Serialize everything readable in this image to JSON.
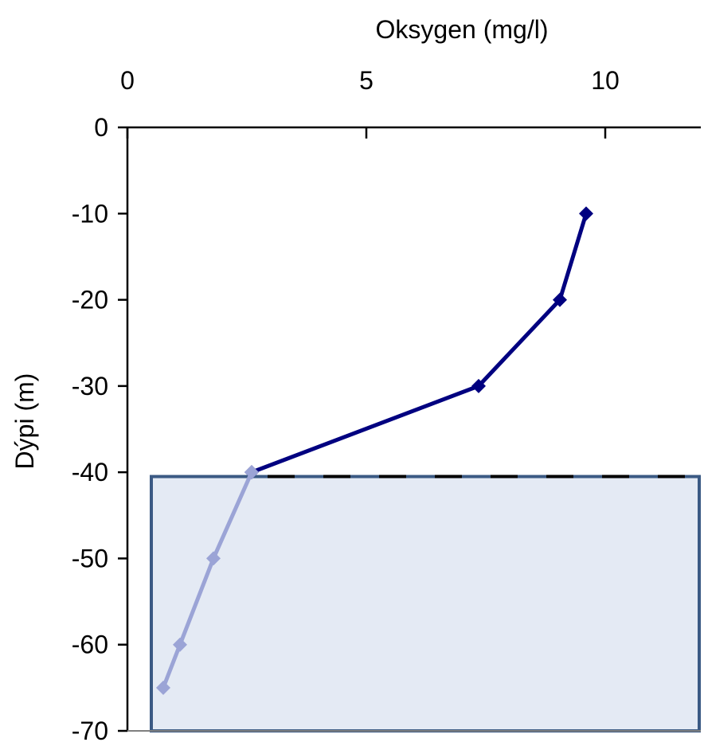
{
  "chart_data": {
    "type": "line",
    "xlabel": "Oksygen (mg/l)",
    "ylabel": "Dýpi (m)",
    "x_axis_position": "top",
    "xlim": [
      0,
      12
    ],
    "ylim": [
      -70,
      0
    ],
    "x_ticks": [
      0,
      5,
      10
    ],
    "x_tick_labels": [
      "0",
      "5",
      "10"
    ],
    "y_ticks": [
      0,
      -10,
      -20,
      -30,
      -40,
      -50,
      -60,
      -70
    ],
    "y_tick_labels": [
      "0",
      "-10",
      "-20",
      "-30",
      "-40",
      "-50",
      "-60",
      "-70"
    ],
    "grid": false,
    "legend": "none",
    "series": [
      {
        "marker": "diamond",
        "color": "#000080",
        "points": [
          {
            "x": 9.6,
            "y": -10
          },
          {
            "x": 9.05,
            "y": -20
          },
          {
            "x": 7.35,
            "y": -30
          },
          {
            "x": 2.6,
            "y": -40
          }
        ]
      },
      {
        "marker": "diamond",
        "color": "#9BA4D6",
        "points": [
          {
            "x": 2.6,
            "y": -40
          },
          {
            "x": 1.8,
            "y": -50
          },
          {
            "x": 1.1,
            "y": -60
          },
          {
            "x": 0.75,
            "y": -65
          }
        ]
      }
    ],
    "shaded_region": {
      "y_from": -40.5,
      "y_to": -70,
      "x_from": 0.5,
      "x_to": 12,
      "fill": "#E4EAF4",
      "stroke": "#3B5A84"
    },
    "reference_line": {
      "y": -40.5,
      "style": "dashed",
      "color": "#000000"
    }
  }
}
